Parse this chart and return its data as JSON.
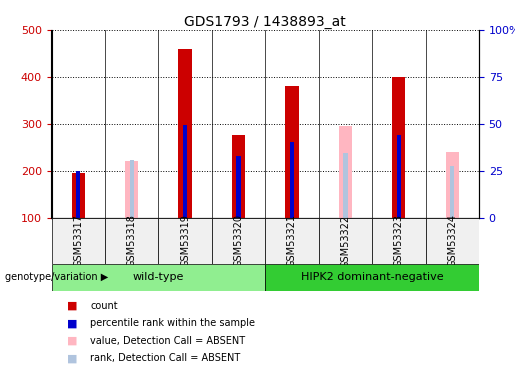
{
  "title": "GDS1793 / 1438893_at",
  "samples": [
    "GSM53317",
    "GSM53318",
    "GSM53319",
    "GSM53320",
    "GSM53321",
    "GSM53322",
    "GSM53323",
    "GSM53324"
  ],
  "count_values": [
    195,
    0,
    460,
    275,
    380,
    0,
    400,
    0
  ],
  "percentile_rank": [
    200,
    0,
    297,
    232,
    262,
    0,
    275,
    210
  ],
  "absent_value": [
    0,
    220,
    0,
    0,
    0,
    295,
    0,
    240
  ],
  "absent_rank": [
    0,
    222,
    0,
    0,
    0,
    238,
    0,
    210
  ],
  "ylim_left": [
    100,
    500
  ],
  "ylim_right": [
    0,
    100
  ],
  "yticks_left": [
    100,
    200,
    300,
    400,
    500
  ],
  "yticks_right": [
    0,
    25,
    50,
    75,
    100
  ],
  "ytick_labels_right": [
    "0",
    "25",
    "50",
    "75",
    "100%"
  ],
  "groups": [
    {
      "label": "wild-type",
      "start": 0,
      "end": 4,
      "color": "#90ee90"
    },
    {
      "label": "HIPK2 dominant-negative",
      "start": 4,
      "end": 8,
      "color": "#33cc33"
    }
  ],
  "color_count": "#cc0000",
  "color_rank": "#0000cc",
  "color_absent_value": "#ffb6c1",
  "color_absent_rank": "#b0c4de",
  "bar_width": 0.25,
  "rank_bar_width": 0.08,
  "group_label": "genotype/variation",
  "bg_color": "#f0f0f0"
}
